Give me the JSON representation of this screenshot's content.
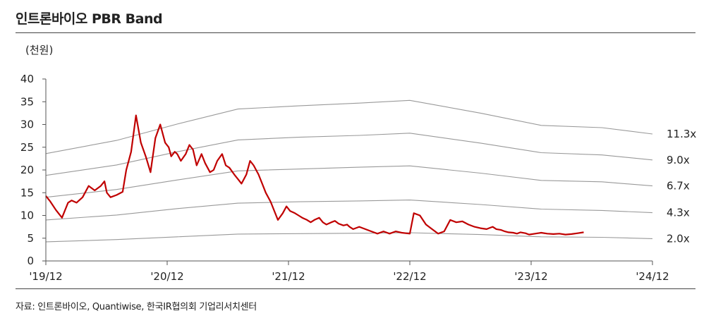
{
  "title": "인트론바이오 PBR Band",
  "source": "자료: 인트론바이오, Quantiwise, 한국IR협의회 기업리서치센터",
  "chart_data": {
    "type": "line",
    "title": "인트론바이오 PBR Band",
    "unit_label": "(천원)",
    "ylim": [
      0,
      40
    ],
    "yticks": [
      "0",
      "5",
      "10",
      "15",
      "20",
      "25",
      "30",
      "35",
      "40"
    ],
    "xlim": [
      2019.917,
      2024.917
    ],
    "xtick_values": [
      2019.917,
      2020.917,
      2021.917,
      2022.917,
      2023.917,
      2024.917
    ],
    "xtick_labels": [
      "'19/12",
      "'20/12",
      "'21/12",
      "'22/12",
      "'23/12",
      "'24/12"
    ],
    "grid": false,
    "colors": {
      "price": "#c00000",
      "band": "#999999",
      "axis": "#555555"
    },
    "bands": [
      {
        "name": "11.3x",
        "x": [
          2019.917,
          2020.5,
          2021.0,
          2021.5,
          2022.0,
          2022.5,
          2022.917,
          2023.5,
          2024.0,
          2024.5,
          2024.917
        ],
        "values": [
          23.6,
          26.5,
          30.1,
          33.4,
          34.1,
          34.7,
          35.3,
          32.5,
          29.8,
          29.3,
          27.9
        ]
      },
      {
        "name": "9.0x",
        "x": [
          2019.917,
          2020.5,
          2021.0,
          2021.5,
          2022.0,
          2022.5,
          2022.917,
          2023.5,
          2024.0,
          2024.5,
          2024.917
        ],
        "values": [
          18.8,
          21.1,
          24.0,
          26.6,
          27.2,
          27.6,
          28.1,
          25.9,
          23.8,
          23.3,
          22.2
        ]
      },
      {
        "name": "6.7x",
        "x": [
          2019.917,
          2020.5,
          2021.0,
          2021.5,
          2022.0,
          2022.5,
          2022.917,
          2023.5,
          2024.0,
          2024.5,
          2024.917
        ],
        "values": [
          14.0,
          15.7,
          17.8,
          19.8,
          20.2,
          20.6,
          20.9,
          19.3,
          17.7,
          17.4,
          16.5
        ]
      },
      {
        "name": "4.3x",
        "x": [
          2019.917,
          2020.5,
          2021.0,
          2021.5,
          2022.0,
          2022.5,
          2022.917,
          2023.5,
          2024.0,
          2024.5,
          2024.917
        ],
        "values": [
          9.0,
          10.1,
          11.5,
          12.7,
          13.0,
          13.2,
          13.4,
          12.4,
          11.4,
          11.1,
          10.6
        ]
      },
      {
        "name": "2.0x",
        "x": [
          2019.917,
          2020.5,
          2021.0,
          2021.5,
          2022.0,
          2022.5,
          2022.917,
          2023.5,
          2024.0,
          2024.5,
          2024.917
        ],
        "values": [
          4.2,
          4.7,
          5.3,
          5.9,
          6.0,
          6.1,
          6.2,
          5.8,
          5.3,
          5.2,
          4.9
        ]
      }
    ],
    "price": {
      "x": [
        2019.917,
        2019.95,
        2020.0,
        2020.05,
        2020.1,
        2020.13,
        2020.17,
        2020.22,
        2020.27,
        2020.32,
        2020.37,
        2020.4,
        2020.42,
        2020.45,
        2020.5,
        2020.55,
        2020.58,
        2020.62,
        2020.66,
        2020.7,
        2020.74,
        2020.78,
        2020.82,
        2020.86,
        2020.9,
        2020.93,
        2020.95,
        2020.98,
        2021.0,
        2021.03,
        2021.07,
        2021.1,
        2021.13,
        2021.16,
        2021.2,
        2021.23,
        2021.27,
        2021.3,
        2021.33,
        2021.37,
        2021.4,
        2021.43,
        2021.47,
        2021.5,
        2021.53,
        2021.57,
        2021.6,
        2021.63,
        2021.67,
        2021.7,
        2021.73,
        2021.77,
        2021.8,
        2021.83,
        2021.87,
        2021.9,
        2021.93,
        2021.97,
        2022.0,
        2022.03,
        2022.07,
        2022.1,
        2022.13,
        2022.17,
        2022.2,
        2022.23,
        2022.27,
        2022.3,
        2022.33,
        2022.37,
        2022.4,
        2022.42,
        2022.45,
        2022.5,
        2022.55,
        2022.6,
        2022.65,
        2022.7,
        2022.75,
        2022.8,
        2022.85,
        2022.917,
        2022.95,
        2023.0,
        2023.05,
        2023.1,
        2023.15,
        2023.2,
        2023.25,
        2023.3,
        2023.35,
        2023.4,
        2023.45,
        2023.5,
        2023.55,
        2023.58,
        2023.6,
        2023.63,
        2023.67,
        2023.7,
        2023.73,
        2023.77,
        2023.8,
        2023.83,
        2023.87,
        2023.9,
        2023.95,
        2024.0,
        2024.05,
        2024.1,
        2024.15,
        2024.2,
        2024.25,
        2024.3,
        2024.35
      ],
      "values": [
        14.3,
        13.2,
        11.2,
        9.5,
        12.8,
        13.3,
        12.8,
        14.0,
        16.5,
        15.5,
        16.5,
        17.5,
        15.0,
        14.0,
        14.5,
        15.2,
        20.0,
        24.0,
        32.0,
        26.0,
        23.0,
        19.5,
        27.0,
        30.0,
        26.0,
        25.0,
        23.0,
        24.0,
        23.5,
        22.0,
        23.5,
        25.5,
        24.5,
        21.0,
        23.5,
        21.5,
        19.5,
        20.0,
        22.0,
        23.5,
        21.0,
        20.5,
        19.0,
        18.0,
        17.0,
        19.0,
        22.0,
        21.0,
        19.0,
        17.0,
        15.0,
        13.0,
        11.0,
        9.0,
        10.5,
        12.0,
        11.0,
        10.5,
        10.0,
        9.5,
        9.0,
        8.5,
        9.0,
        9.5,
        8.5,
        8.0,
        8.5,
        8.8,
        8.2,
        7.8,
        8.0,
        7.5,
        7.0,
        7.5,
        7.0,
        6.5,
        6.0,
        6.5,
        6.0,
        6.5,
        6.2,
        6.0,
        10.5,
        10.0,
        8.0,
        7.0,
        6.0,
        6.5,
        9.0,
        8.5,
        8.7,
        8.0,
        7.5,
        7.2,
        7.0,
        7.3,
        7.5,
        7.0,
        6.8,
        6.5,
        6.3,
        6.2,
        6.0,
        6.3,
        6.1,
        5.8,
        6.0,
        6.2,
        6.0,
        5.9,
        6.0,
        5.8,
        5.9,
        6.1,
        6.3
      ]
    }
  }
}
